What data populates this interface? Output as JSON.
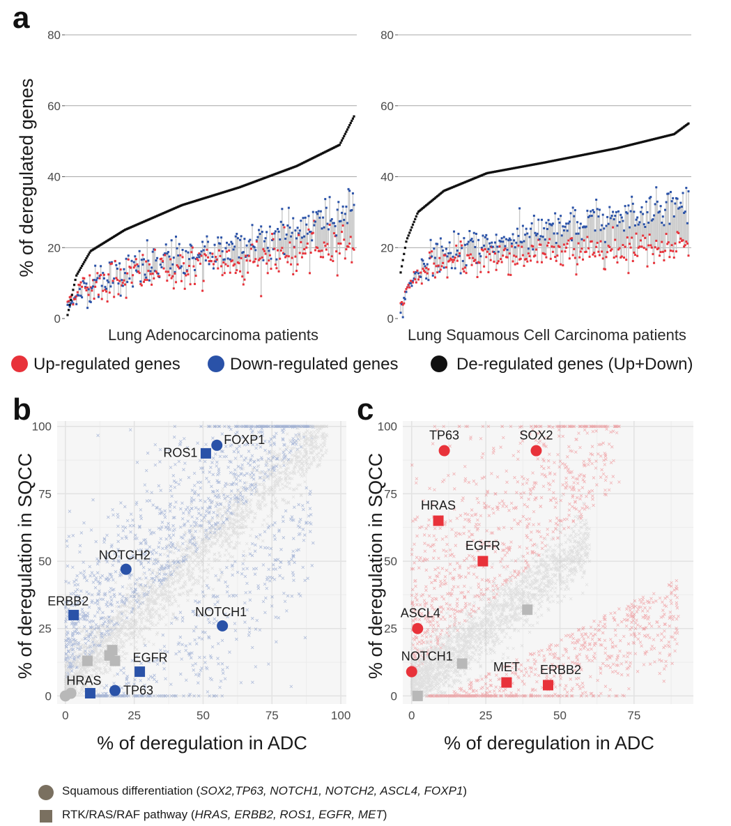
{
  "panel_labels": [
    "a",
    "b",
    "c"
  ],
  "colors": {
    "up": "#e8323a",
    "down": "#2a52a8",
    "dereg": "#111111",
    "neutral": "#b8b8b8",
    "legend_marker": "#7a7060"
  },
  "chart_data": [
    {
      "type": "scatter",
      "id": "a-left",
      "xlabel": "Lung Adenocarcinoma patients",
      "ylabel": "% of deregulated genes",
      "ylim": [
        0,
        80
      ],
      "yticks": [
        0,
        20,
        40,
        60,
        80
      ],
      "grid": true,
      "n_points": 260,
      "series": [
        {
          "name": "Up-regulated genes",
          "key": "up",
          "profile": [
            [
              0,
              5
            ],
            [
              0.05,
              9
            ],
            [
              0.2,
              12
            ],
            [
              0.5,
              15
            ],
            [
              0.8,
              18
            ],
            [
              1,
              22
            ]
          ],
          "noise": 3
        },
        {
          "name": "Down-regulated genes",
          "key": "down",
          "profile": [
            [
              0,
              3
            ],
            [
              0.05,
              8
            ],
            [
              0.2,
              13
            ],
            [
              0.5,
              19
            ],
            [
              0.8,
              25
            ],
            [
              1,
              32
            ]
          ],
          "noise": 3
        },
        {
          "name": "De-regulated genes (Up+Down)",
          "key": "dereg",
          "profile": [
            [
              0,
              1
            ],
            [
              0.03,
              12
            ],
            [
              0.08,
              19
            ],
            [
              0.2,
              25
            ],
            [
              0.4,
              32
            ],
            [
              0.6,
              37
            ],
            [
              0.8,
              43
            ],
            [
              0.95,
              49
            ],
            [
              1,
              57
            ]
          ],
          "noise": 0
        }
      ]
    },
    {
      "type": "scatter",
      "id": "a-right",
      "xlabel": "Lung Squamous Cell Carcinoma patients",
      "ylabel": "",
      "ylim": [
        0,
        80
      ],
      "yticks": [
        0,
        20,
        40,
        60,
        80
      ],
      "grid": true,
      "n_points": 260,
      "series": [
        {
          "name": "Up-regulated genes",
          "key": "up",
          "profile": [
            [
              0,
              3
            ],
            [
              0.03,
              10
            ],
            [
              0.1,
              15
            ],
            [
              0.3,
              17
            ],
            [
              0.6,
              19
            ],
            [
              1,
              21
            ]
          ],
          "noise": 2.5
        },
        {
          "name": "Down-regulated genes",
          "key": "down",
          "profile": [
            [
              0,
              1
            ],
            [
              0.03,
              10
            ],
            [
              0.1,
              17
            ],
            [
              0.3,
              21
            ],
            [
              0.6,
              26
            ],
            [
              1,
              33
            ]
          ],
          "noise": 2.5
        },
        {
          "name": "De-regulated genes (Up+Down)",
          "key": "dereg",
          "profile": [
            [
              0,
              13
            ],
            [
              0.02,
              22
            ],
            [
              0.06,
              30
            ],
            [
              0.15,
              36
            ],
            [
              0.3,
              41
            ],
            [
              0.5,
              44
            ],
            [
              0.75,
              48
            ],
            [
              0.95,
              52
            ],
            [
              1,
              55
            ]
          ],
          "noise": 0
        }
      ]
    },
    {
      "type": "scatter",
      "id": "b",
      "xlabel": "% of deregulation in ADC",
      "ylabel": "% of deregulation in SQCC",
      "xlim": [
        -3,
        102
      ],
      "ylim": [
        -3,
        102
      ],
      "xticks": [
        0,
        25,
        50,
        75,
        100
      ],
      "yticks": [
        0,
        25,
        50,
        75,
        100
      ],
      "grid": true,
      "highlight_color": "down",
      "points": [
        {
          "label": "FOXP1",
          "x": 55,
          "y": 93,
          "shape": "circle",
          "color": "down"
        },
        {
          "label": "ROS1",
          "x": 51,
          "y": 90,
          "shape": "square",
          "color": "down"
        },
        {
          "label": "NOTCH2",
          "x": 22,
          "y": 47,
          "shape": "circle",
          "color": "down"
        },
        {
          "label": "ERBB2",
          "x": 3,
          "y": 30,
          "shape": "square",
          "color": "down"
        },
        {
          "label": "NOTCH1",
          "x": 57,
          "y": 26,
          "shape": "circle",
          "color": "down"
        },
        {
          "label": "EGFR",
          "x": 27,
          "y": 9,
          "shape": "square",
          "color": "down"
        },
        {
          "label": "HRAS",
          "x": 9,
          "y": 1,
          "shape": "square",
          "color": "down"
        },
        {
          "label": "TP63",
          "x": 18,
          "y": 2,
          "shape": "circle",
          "color": "down"
        },
        {
          "label": "",
          "x": 17,
          "y": 17,
          "shape": "square",
          "color": "neutral"
        },
        {
          "label": "",
          "x": 18,
          "y": 13,
          "shape": "square",
          "color": "neutral"
        },
        {
          "label": "",
          "x": 16,
          "y": 15,
          "shape": "square",
          "color": "neutral"
        },
        {
          "label": "",
          "x": 8,
          "y": 13,
          "shape": "square",
          "color": "neutral"
        },
        {
          "label": "",
          "x": 2,
          "y": 1,
          "shape": "circle",
          "color": "neutral"
        },
        {
          "label": "",
          "x": 0,
          "y": 0,
          "shape": "circle",
          "color": "neutral"
        }
      ]
    },
    {
      "type": "scatter",
      "id": "c",
      "xlabel": "% of deregulation in ADC",
      "ylabel": "% of deregulation in SQCC",
      "xlim": [
        -3,
        95
      ],
      "ylim": [
        -3,
        102
      ],
      "xticks": [
        0,
        25,
        50,
        75
      ],
      "yticks": [
        0,
        25,
        50,
        75,
        100
      ],
      "grid": true,
      "highlight_color": "up",
      "points": [
        {
          "label": "TP63",
          "x": 11,
          "y": 91,
          "shape": "circle",
          "color": "up"
        },
        {
          "label": "SOX2",
          "x": 42,
          "y": 91,
          "shape": "circle",
          "color": "up"
        },
        {
          "label": "HRAS",
          "x": 9,
          "y": 65,
          "shape": "square",
          "color": "up"
        },
        {
          "label": "EGFR",
          "x": 24,
          "y": 50,
          "shape": "square",
          "color": "up"
        },
        {
          "label": "ASCL4",
          "x": 2,
          "y": 25,
          "shape": "circle",
          "color": "up"
        },
        {
          "label": "NOTCH1",
          "x": 0,
          "y": 9,
          "shape": "circle",
          "color": "up"
        },
        {
          "label": "MET",
          "x": 32,
          "y": 5,
          "shape": "square",
          "color": "up"
        },
        {
          "label": "ERBB2",
          "x": 46,
          "y": 4,
          "shape": "square",
          "color": "up"
        },
        {
          "label": "",
          "x": 39,
          "y": 32,
          "shape": "square",
          "color": "neutral"
        },
        {
          "label": "",
          "x": 17,
          "y": 12,
          "shape": "square",
          "color": "neutral"
        },
        {
          "label": "",
          "x": 2,
          "y": 0,
          "shape": "square",
          "color": "neutral"
        }
      ]
    }
  ],
  "legend_a": [
    {
      "label": "Up-regulated genes",
      "key": "up"
    },
    {
      "label": "Down-regulated genes",
      "key": "down"
    },
    {
      "label": "De-regulated genes (Up+Down)",
      "key": "dereg"
    }
  ],
  "footer": {
    "squamous_prefix": "Squamous differentiation (",
    "squamous_genes": "SOX2,TP63, NOTCH1, NOTCH2, ASCL4, FOXP1",
    "squamous_suffix": ")",
    "rtk_prefix": "RTK/RAS/RAF pathway (",
    "rtk_genes": "HRAS, ERBB2, ROS1, EGFR, MET",
    "rtk_suffix": ")"
  }
}
